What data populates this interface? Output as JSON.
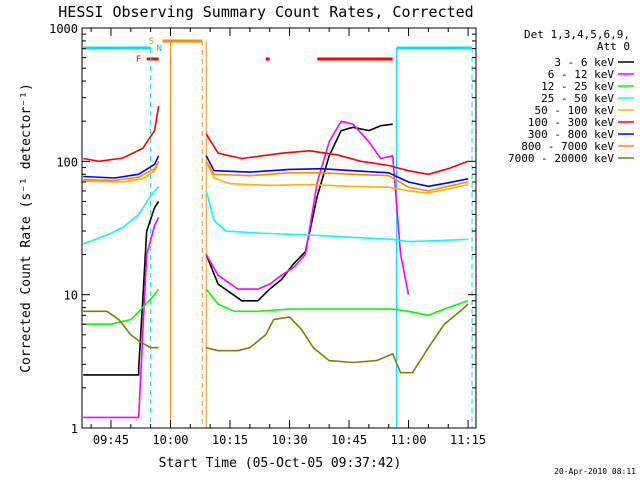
{
  "header": {
    "title": "HESSI Observing Summary Count Rates, Corrected",
    "footer_date": "20-Apr-2010 08:11"
  },
  "chart_data": {
    "type": "line",
    "title": "HESSI Observing Summary Count Rates, Corrected",
    "xlabel": "Start Time (05-Oct-05 09:37:42)",
    "ylabel": "Corrected Count Rate (s⁻¹ detector⁻¹)",
    "y_scale": "log",
    "ylim": [
      1,
      1000
    ],
    "xlim": [
      "09:37:42",
      "11:17:00"
    ],
    "x_tick_labels": [
      "09:45",
      "10:00",
      "10:15",
      "10:30",
      "10:45",
      "11:00",
      "11:15"
    ],
    "x_tick_values": [
      "09:45",
      "10:00",
      "10:15",
      "10:30",
      "10:45",
      "11:00",
      "11:15"
    ],
    "y_tick_labels": [
      "1",
      "10",
      "100",
      "1000"
    ],
    "legend_header": [
      "Det 1,3,4,5,6,9,",
      "Att 0"
    ],
    "legend_position": "right",
    "flag_labels": {
      "saa": "S",
      "night": "N",
      "flare": "F"
    },
    "flags": {
      "saa": [
        [
          "09:58",
          "10:08"
        ]
      ],
      "flare": [
        [
          "09:54",
          "09:57"
        ],
        [
          "10:24",
          "10:25"
        ],
        [
          "10:37",
          "10:56"
        ]
      ],
      "eclipse": [
        [
          "09:38",
          "09:55"
        ],
        [
          "10:57",
          "11:16"
        ]
      ]
    },
    "data_gap": [
      "10:00",
      "10:09"
    ],
    "dashed_markers": {
      "cyan": [
        "09:55",
        "11:16"
      ],
      "orange": [
        "10:08"
      ]
    },
    "solid_markers": {
      "orange": [
        "10:00",
        "10:09"
      ],
      "cyan": [
        "10:57"
      ]
    },
    "series": [
      {
        "name": "3 - 6 keV",
        "color": "#000000",
        "points": [
          [
            "09:38",
            2.5
          ],
          [
            "09:52",
            2.5
          ],
          [
            "09:52",
            2.8
          ],
          [
            "09:53",
            9
          ],
          [
            "09:54",
            30
          ],
          [
            "09:56",
            45
          ],
          [
            "09:57",
            50
          ],
          [
            "10:09",
            20
          ],
          [
            "10:12",
            12
          ],
          [
            "10:18",
            9
          ],
          [
            "10:22",
            9
          ],
          [
            "10:25",
            11
          ],
          [
            "10:28",
            13
          ],
          [
            "10:31",
            17
          ],
          [
            "10:34",
            21
          ],
          [
            "10:37",
            55
          ],
          [
            "10:40",
            110
          ],
          [
            "10:43",
            170
          ],
          [
            "10:46",
            180
          ],
          [
            "10:50",
            170
          ],
          [
            "10:53",
            185
          ],
          [
            "10:56",
            190
          ]
        ]
      },
      {
        "name": "6 - 12 keV",
        "color": "#ff00ff",
        "points": [
          [
            "09:38",
            1.2
          ],
          [
            "09:52",
            1.2
          ],
          [
            "09:53",
            5
          ],
          [
            "09:54",
            20
          ],
          [
            "09:56",
            33
          ],
          [
            "09:57",
            38
          ],
          [
            "10:09",
            20
          ],
          [
            "10:12",
            14
          ],
          [
            "10:17",
            11
          ],
          [
            "10:22",
            11
          ],
          [
            "10:25",
            12
          ],
          [
            "10:28",
            14
          ],
          [
            "10:31",
            16
          ],
          [
            "10:34",
            20
          ],
          [
            "10:37",
            70
          ],
          [
            "10:40",
            140
          ],
          [
            "10:43",
            200
          ],
          [
            "10:46",
            190
          ],
          [
            "10:50",
            140
          ],
          [
            "10:53",
            105
          ],
          [
            "10:56",
            110
          ],
          [
            "10:58",
            20
          ],
          [
            "11:00",
            10
          ]
        ]
      },
      {
        "name": "12 - 25 keV",
        "color": "#00ff00",
        "points": [
          [
            "09:38",
            6
          ],
          [
            "09:45",
            6
          ],
          [
            "09:50",
            6.5
          ],
          [
            "09:53",
            8
          ],
          [
            "09:56",
            10
          ],
          [
            "09:57",
            11
          ],
          [
            "10:09",
            11
          ],
          [
            "10:12",
            8.5
          ],
          [
            "10:16",
            7.5
          ],
          [
            "10:22",
            7.5
          ],
          [
            "10:30",
            7.8
          ],
          [
            "10:40",
            7.8
          ],
          [
            "10:50",
            7.8
          ],
          [
            "10:56",
            7.8
          ],
          [
            "11:00",
            7.5
          ],
          [
            "11:05",
            7
          ],
          [
            "11:10",
            8
          ],
          [
            "11:15",
            9
          ]
        ]
      },
      {
        "name": "25 - 50 keV",
        "color": "#00ffff",
        "points": [
          [
            "09:38",
            24
          ],
          [
            "09:44",
            28
          ],
          [
            "09:48",
            32
          ],
          [
            "09:52",
            40
          ],
          [
            "09:55",
            55
          ],
          [
            "09:57",
            65
          ],
          [
            "10:09",
            60
          ],
          [
            "10:11",
            36
          ],
          [
            "10:14",
            30
          ],
          [
            "10:22",
            29
          ],
          [
            "10:35",
            28
          ],
          [
            "10:45",
            27
          ],
          [
            "10:56",
            26
          ],
          [
            "11:00",
            25
          ],
          [
            "11:08",
            25.5
          ],
          [
            "11:15",
            26
          ]
        ]
      },
      {
        "name": "50 - 100 keV",
        "color": "#ffb000",
        "points": [
          [
            "09:38",
            71
          ],
          [
            "09:48",
            70
          ],
          [
            "09:53",
            74
          ],
          [
            "09:56",
            85
          ],
          [
            "09:57",
            100
          ],
          [
            "10:09",
            100
          ],
          [
            "10:11",
            75
          ],
          [
            "10:15",
            68
          ],
          [
            "10:25",
            66
          ],
          [
            "10:35",
            67
          ],
          [
            "10:45",
            65
          ],
          [
            "10:55",
            64
          ],
          [
            "11:00",
            60
          ],
          [
            "11:05",
            58
          ],
          [
            "11:10",
            62
          ],
          [
            "11:15",
            67
          ]
        ]
      },
      {
        "name": "100 - 300 keV",
        "color": "#ff0000",
        "points": [
          [
            "09:38",
            105
          ],
          [
            "09:42",
            100
          ],
          [
            "09:48",
            106
          ],
          [
            "09:53",
            125
          ],
          [
            "09:56",
            170
          ],
          [
            "09:57",
            260
          ],
          [
            "10:09",
            160
          ],
          [
            "10:12",
            115
          ],
          [
            "10:18",
            105
          ],
          [
            "10:28",
            115
          ],
          [
            "10:35",
            120
          ],
          [
            "10:42",
            112
          ],
          [
            "10:48",
            100
          ],
          [
            "10:55",
            93
          ],
          [
            "11:00",
            85
          ],
          [
            "11:05",
            80
          ],
          [
            "11:10",
            88
          ],
          [
            "11:15",
            100
          ]
        ]
      },
      {
        "name": "300 - 800 keV",
        "color": "#0000ff",
        "points": [
          [
            "09:38",
            77
          ],
          [
            "09:46",
            75
          ],
          [
            "09:52",
            80
          ],
          [
            "09:56",
            95
          ],
          [
            "09:57",
            110
          ],
          [
            "10:09",
            110
          ],
          [
            "10:11",
            85
          ],
          [
            "10:20",
            83
          ],
          [
            "10:30",
            87
          ],
          [
            "10:38",
            88
          ],
          [
            "10:46",
            85
          ],
          [
            "10:55",
            82
          ],
          [
            "11:00",
            70
          ],
          [
            "11:05",
            65
          ],
          [
            "11:10",
            69
          ],
          [
            "11:15",
            74
          ]
        ]
      },
      {
        "name": "800 - 7000 keV",
        "color": "#ff8c00",
        "points": [
          [
            "09:38",
            73
          ],
          [
            "09:46",
            72
          ],
          [
            "09:52",
            76
          ],
          [
            "09:56",
            88
          ],
          [
            "09:57",
            100
          ],
          [
            "10:09",
            100
          ],
          [
            "10:11",
            80
          ],
          [
            "10:20",
            78
          ],
          [
            "10:30",
            82
          ],
          [
            "10:38",
            82
          ],
          [
            "10:46",
            80
          ],
          [
            "10:55",
            78
          ],
          [
            "11:00",
            64
          ],
          [
            "11:05",
            60
          ],
          [
            "11:10",
            65
          ],
          [
            "11:15",
            70
          ]
        ]
      },
      {
        "name": "7000 - 20000 keV",
        "color": "#808000",
        "points": [
          [
            "09:38",
            7.5
          ],
          [
            "09:44",
            7.5
          ],
          [
            "09:47",
            6.5
          ],
          [
            "09:50",
            5
          ],
          [
            "09:52",
            4.5
          ],
          [
            "09:55",
            4
          ],
          [
            "09:57",
            4
          ],
          [
            "10:09",
            4
          ],
          [
            "10:12",
            3.8
          ],
          [
            "10:17",
            3.8
          ],
          [
            "10:20",
            4
          ],
          [
            "10:24",
            5
          ],
          [
            "10:26",
            6.5
          ],
          [
            "10:30",
            6.8
          ],
          [
            "10:33",
            5.5
          ],
          [
            "10:36",
            4
          ],
          [
            "10:40",
            3.2
          ],
          [
            "10:46",
            3.1
          ],
          [
            "10:52",
            3.2
          ],
          [
            "10:56",
            3.6
          ],
          [
            "10:58",
            2.6
          ],
          [
            "11:01",
            2.6
          ],
          [
            "11:05",
            4
          ],
          [
            "11:09",
            6
          ],
          [
            "11:13",
            7.5
          ],
          [
            "11:15",
            8.5
          ]
        ]
      }
    ]
  }
}
